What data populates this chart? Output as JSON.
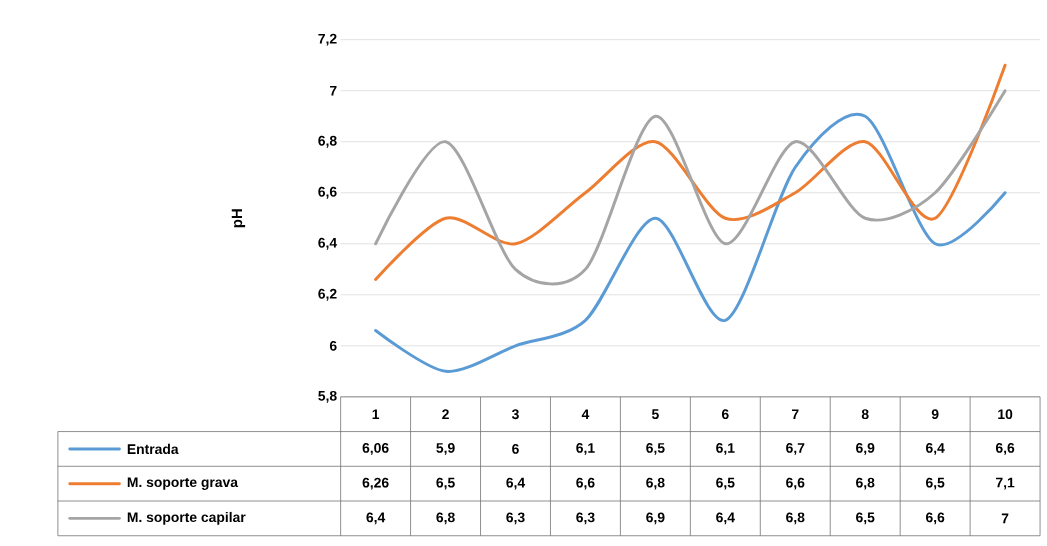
{
  "chart_data": {
    "type": "line",
    "ylabel": "pH",
    "categories": [
      "1",
      "2",
      "3",
      "4",
      "5",
      "6",
      "7",
      "8",
      "9",
      "10"
    ],
    "ylim": [
      5.8,
      7.2
    ],
    "yticks": [
      {
        "value": 5.8,
        "label": "5,8"
      },
      {
        "value": 6.0,
        "label": "6"
      },
      {
        "value": 6.2,
        "label": "6,2"
      },
      {
        "value": 6.4,
        "label": "6,4"
      },
      {
        "value": 6.6,
        "label": "6,6"
      },
      {
        "value": 6.8,
        "label": "6,8"
      },
      {
        "value": 7.0,
        "label": "7"
      },
      {
        "value": 7.2,
        "label": "7,2"
      }
    ],
    "grid": "y",
    "legend": "bottom",
    "series": [
      {
        "name": "Entrada",
        "color": "#5b9bd5",
        "values": [
          6.06,
          5.9,
          6.0,
          6.1,
          6.5,
          6.1,
          6.7,
          6.9,
          6.4,
          6.6
        ],
        "value_labels": [
          "6,06",
          "5,9",
          "6",
          "6,1",
          "6,5",
          "6,1",
          "6,7",
          "6,9",
          "6,4",
          "6,6"
        ]
      },
      {
        "name": "M. soporte grava",
        "color": "#ed7d31",
        "values": [
          6.26,
          6.5,
          6.4,
          6.6,
          6.8,
          6.5,
          6.6,
          6.8,
          6.5,
          7.1
        ],
        "value_labels": [
          "6,26",
          "6,5",
          "6,4",
          "6,6",
          "6,8",
          "6,5",
          "6,6",
          "6,8",
          "6,5",
          "7,1"
        ]
      },
      {
        "name": "M. soporte capilar",
        "color": "#a5a5a5",
        "values": [
          6.4,
          6.8,
          6.3,
          6.3,
          6.9,
          6.4,
          6.8,
          6.5,
          6.6,
          7.0
        ],
        "value_labels": [
          "6,4",
          "6,8",
          "6,3",
          "6,3",
          "6,9",
          "6,4",
          "6,8",
          "6,5",
          "6,6",
          "7"
        ]
      }
    ]
  }
}
